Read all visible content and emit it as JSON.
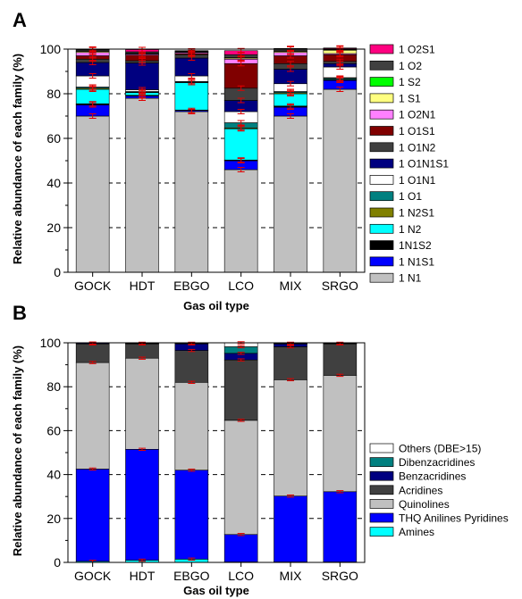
{
  "chart_data": [
    {
      "panel": "A",
      "type": "bar",
      "stacked": true,
      "xlabel": "Gas oil type",
      "ylabel": "Relative abundance of each family (%)",
      "ylim": [
        0,
        100
      ],
      "yticks": [
        0,
        20,
        40,
        60,
        80,
        100
      ],
      "grid": "dashed horizontal at major ticks",
      "legend_position": "right",
      "categories": [
        "GOCK",
        "HDT",
        "EBGO",
        "LCO",
        "MIX",
        "SRGO"
      ],
      "series": [
        {
          "name": "1 N1",
          "color": "#c0c0c0",
          "values": [
            70,
            78,
            72,
            46,
            70,
            82
          ]
        },
        {
          "name": "1 N1S1",
          "color": "#0000ff",
          "values": [
            5,
            1,
            0.5,
            4,
            4,
            4
          ]
        },
        {
          "name": "1N1S2",
          "color": "#000000",
          "values": [
            0.5,
            0.3,
            0.2,
            0.3,
            0.5,
            0.3
          ]
        },
        {
          "name": "1 N2",
          "color": "#00ffff",
          "values": [
            6.5,
            1.2,
            12.3,
            14,
            5.5,
            0.4
          ]
        },
        {
          "name": "1 N2S1",
          "color": "#808000",
          "values": [
            0.5,
            0.2,
            0.2,
            0.4,
            0.5,
            0.3
          ]
        },
        {
          "name": "1 O1",
          "color": "#008080",
          "values": [
            0.5,
            0.3,
            0.3,
            2.3,
            0.5,
            0.2
          ]
        },
        {
          "name": "1 O1N1",
          "color": "#ffffff",
          "values": [
            5,
            0.8,
            2.5,
            5,
            3.5,
            4.8
          ]
        },
        {
          "name": "1 O1N1S1",
          "color": "#000080",
          "values": [
            6,
            12,
            8,
            5,
            6.5,
            1.5
          ]
        },
        {
          "name": "1 O1N2",
          "color": "#404040",
          "values": [
            1.5,
            1,
            1.5,
            5.5,
            2.5,
            1
          ]
        },
        {
          "name": "1 O1S1",
          "color": "#800000",
          "values": [
            1.5,
            2.5,
            0.5,
            11,
            3.5,
            3
          ]
        },
        {
          "name": "1 O2N1",
          "color": "#ff80ff",
          "values": [
            1.5,
            0.5,
            0.5,
            2,
            1.5,
            0.5
          ]
        },
        {
          "name": "1 S1",
          "color": "#ffff80",
          "values": [
            0.5,
            0.2,
            0.2,
            0.5,
            0.5,
            1.5
          ]
        },
        {
          "name": "1 S2",
          "color": "#00ff00",
          "values": [
            0.2,
            0.1,
            0.1,
            0.2,
            0.2,
            0.2
          ]
        },
        {
          "name": "1 O2",
          "color": "#404040",
          "values": [
            0.5,
            0.7,
            0.4,
            1.3,
            0.8,
            0.5
          ]
        },
        {
          "name": "1 O2S1",
          "color": "#ff0080",
          "values": [
            0.3,
            1,
            0.1,
            1.8,
            0.3,
            0.3
          ]
        }
      ]
    },
    {
      "panel": "B",
      "type": "bar",
      "stacked": true,
      "xlabel": "Gas oil type",
      "ylabel": "Relative abundance of each family (%)",
      "ylim": [
        0,
        100
      ],
      "yticks": [
        0,
        20,
        40,
        60,
        80,
        100
      ],
      "grid": "dashed horizontal at major ticks",
      "legend_position": "right",
      "categories": [
        "GOCK",
        "HDT",
        "EBGO",
        "LCO",
        "MIX",
        "SRGO"
      ],
      "series": [
        {
          "name": "Amines",
          "color": "#00ffff",
          "values": [
            0.5,
            1,
            1.5,
            0.2,
            0.2,
            0.2
          ]
        },
        {
          "name": "THQ Anilines Pyridines",
          "color": "#0000ff",
          "values": [
            42,
            50.5,
            40.5,
            12.5,
            30,
            32
          ]
        },
        {
          "name": "Quinolines",
          "color": "#c0c0c0",
          "values": [
            48.5,
            41.5,
            40,
            52,
            53,
            53
          ]
        },
        {
          "name": "Acridines",
          "color": "#404040",
          "values": [
            8.5,
            6.5,
            14.5,
            27.5,
            15,
            14.3
          ]
        },
        {
          "name": "Benzacridines",
          "color": "#000080",
          "values": [
            0.4,
            0.3,
            3,
            3,
            1.3,
            0.3
          ]
        },
        {
          "name": "Dibenzacridines",
          "color": "#008080",
          "values": [
            0.1,
            0.1,
            0.3,
            3,
            0.3,
            0.1
          ]
        },
        {
          "name": "Others (DBE>15)",
          "color": "#ffffff",
          "values": [
            0,
            0,
            0.2,
            1.8,
            0.2,
            0.1
          ]
        }
      ]
    }
  ],
  "panels": {
    "A": {
      "letter": "A",
      "xlabel": "Gas oil type",
      "ylabel": "Relative abundance of each family (%)"
    },
    "B": {
      "letter": "B",
      "xlabel": "Gas oil type",
      "ylabel": "Relative abundance of each family (%)"
    }
  }
}
